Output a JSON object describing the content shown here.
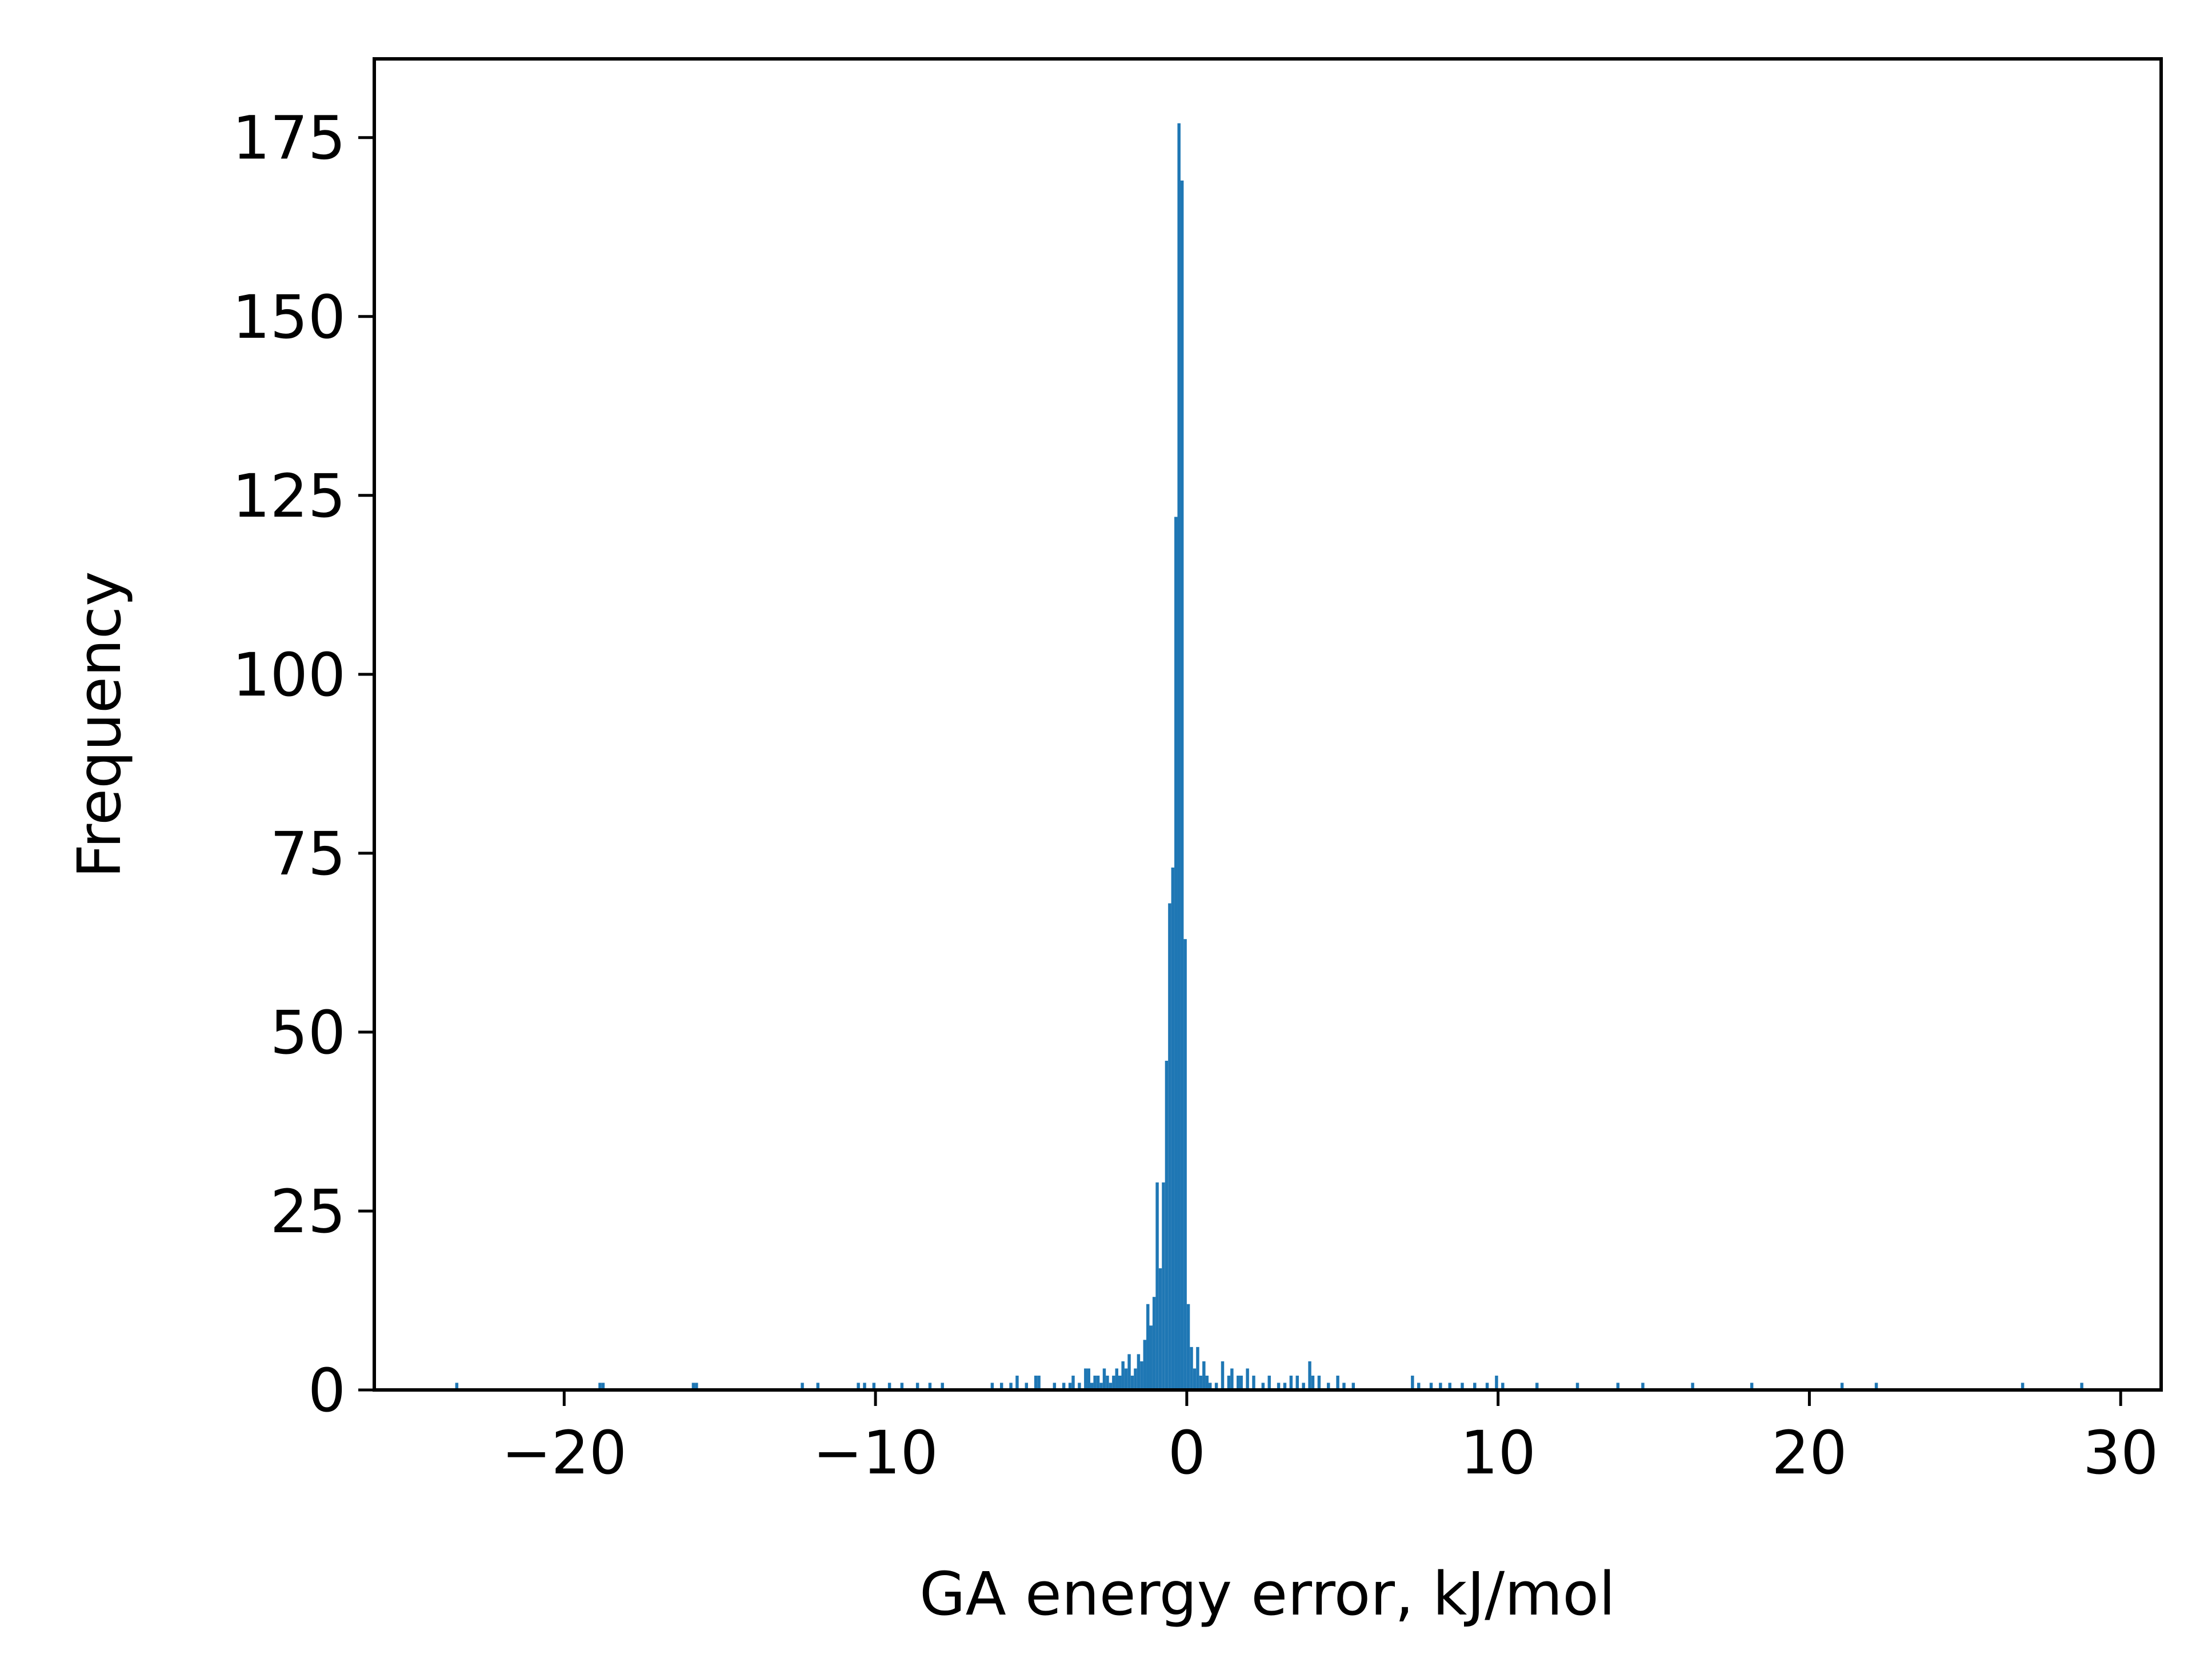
{
  "chart_data": {
    "type": "histogram",
    "title": "",
    "xlabel": "GA energy error, kJ/mol",
    "ylabel": "Frequency",
    "xlim": [
      -26.1,
      31.3
    ],
    "ylim": [
      0,
      186
    ],
    "xticks": [
      -20,
      -10,
      0,
      10,
      20,
      30
    ],
    "xtick_labels": [
      "−20",
      "−10",
      "0",
      "10",
      "20",
      "30"
    ],
    "yticks": [
      0,
      25,
      50,
      75,
      100,
      125,
      150,
      175
    ],
    "ytick_labels": [
      "0",
      "25",
      "50",
      "75",
      "100",
      "125",
      "150",
      "175"
    ],
    "grid": false,
    "legend": "none",
    "bar_color": "#1f77b4",
    "bin_width": 0.1,
    "bins": [
      {
        "x": -23.5,
        "y": 1
      },
      {
        "x": -18.9,
        "y": 1
      },
      {
        "x": -18.8,
        "y": 1
      },
      {
        "x": -15.9,
        "y": 1
      },
      {
        "x": -15.8,
        "y": 1
      },
      {
        "x": -12.4,
        "y": 1
      },
      {
        "x": -11.9,
        "y": 1
      },
      {
        "x": -10.6,
        "y": 1
      },
      {
        "x": -10.4,
        "y": 1
      },
      {
        "x": -10.1,
        "y": 1
      },
      {
        "x": -9.6,
        "y": 1
      },
      {
        "x": -9.2,
        "y": 1
      },
      {
        "x": -8.7,
        "y": 1
      },
      {
        "x": -8.3,
        "y": 1
      },
      {
        "x": -7.9,
        "y": 1
      },
      {
        "x": -6.3,
        "y": 1
      },
      {
        "x": -6.0,
        "y": 1
      },
      {
        "x": -5.7,
        "y": 1
      },
      {
        "x": -5.5,
        "y": 2
      },
      {
        "x": -5.2,
        "y": 1
      },
      {
        "x": -4.9,
        "y": 2
      },
      {
        "x": -4.8,
        "y": 2
      },
      {
        "x": -4.3,
        "y": 1
      },
      {
        "x": -4.0,
        "y": 1
      },
      {
        "x": -3.8,
        "y": 1
      },
      {
        "x": -3.7,
        "y": 2
      },
      {
        "x": -3.5,
        "y": 1
      },
      {
        "x": -3.3,
        "y": 3
      },
      {
        "x": -3.2,
        "y": 3
      },
      {
        "x": -3.1,
        "y": 1
      },
      {
        "x": -3.0,
        "y": 2
      },
      {
        "x": -2.9,
        "y": 2
      },
      {
        "x": -2.8,
        "y": 1
      },
      {
        "x": -2.7,
        "y": 3
      },
      {
        "x": -2.6,
        "y": 2
      },
      {
        "x": -2.5,
        "y": 1
      },
      {
        "x": -2.4,
        "y": 2
      },
      {
        "x": -2.3,
        "y": 3
      },
      {
        "x": -2.2,
        "y": 2
      },
      {
        "x": -2.1,
        "y": 4
      },
      {
        "x": -2.0,
        "y": 3
      },
      {
        "x": -1.9,
        "y": 5
      },
      {
        "x": -1.8,
        "y": 2
      },
      {
        "x": -1.7,
        "y": 3
      },
      {
        "x": -1.6,
        "y": 5
      },
      {
        "x": -1.5,
        "y": 4
      },
      {
        "x": -1.4,
        "y": 7
      },
      {
        "x": -1.3,
        "y": 12
      },
      {
        "x": -1.2,
        "y": 9
      },
      {
        "x": -1.1,
        "y": 13
      },
      {
        "x": -1.0,
        "y": 29
      },
      {
        "x": -0.9,
        "y": 17
      },
      {
        "x": -0.8,
        "y": 29
      },
      {
        "x": -0.7,
        "y": 46
      },
      {
        "x": -0.6,
        "y": 68
      },
      {
        "x": -0.5,
        "y": 73
      },
      {
        "x": -0.4,
        "y": 122
      },
      {
        "x": -0.3,
        "y": 177
      },
      {
        "x": -0.2,
        "y": 169
      },
      {
        "x": -0.1,
        "y": 63
      },
      {
        "x": 0.0,
        "y": 12
      },
      {
        "x": 0.1,
        "y": 6
      },
      {
        "x": 0.2,
        "y": 3
      },
      {
        "x": 0.3,
        "y": 6
      },
      {
        "x": 0.4,
        "y": 2
      },
      {
        "x": 0.5,
        "y": 4
      },
      {
        "x": 0.6,
        "y": 2
      },
      {
        "x": 0.7,
        "y": 1
      },
      {
        "x": 0.9,
        "y": 1
      },
      {
        "x": 1.1,
        "y": 4
      },
      {
        "x": 1.3,
        "y": 2
      },
      {
        "x": 1.4,
        "y": 3
      },
      {
        "x": 1.6,
        "y": 2
      },
      {
        "x": 1.7,
        "y": 2
      },
      {
        "x": 1.9,
        "y": 3
      },
      {
        "x": 2.1,
        "y": 2
      },
      {
        "x": 2.4,
        "y": 1
      },
      {
        "x": 2.6,
        "y": 2
      },
      {
        "x": 2.9,
        "y": 1
      },
      {
        "x": 3.1,
        "y": 1
      },
      {
        "x": 3.3,
        "y": 2
      },
      {
        "x": 3.5,
        "y": 2
      },
      {
        "x": 3.7,
        "y": 1
      },
      {
        "x": 3.9,
        "y": 4
      },
      {
        "x": 4.0,
        "y": 2
      },
      {
        "x": 4.2,
        "y": 2
      },
      {
        "x": 4.5,
        "y": 1
      },
      {
        "x": 4.8,
        "y": 2
      },
      {
        "x": 5.0,
        "y": 1
      },
      {
        "x": 5.3,
        "y": 1
      },
      {
        "x": 7.2,
        "y": 2
      },
      {
        "x": 7.4,
        "y": 1
      },
      {
        "x": 7.8,
        "y": 1
      },
      {
        "x": 8.1,
        "y": 1
      },
      {
        "x": 8.4,
        "y": 1
      },
      {
        "x": 8.8,
        "y": 1
      },
      {
        "x": 9.2,
        "y": 1
      },
      {
        "x": 9.6,
        "y": 1
      },
      {
        "x": 9.9,
        "y": 2
      },
      {
        "x": 10.1,
        "y": 1
      },
      {
        "x": 11.2,
        "y": 1
      },
      {
        "x": 12.5,
        "y": 1
      },
      {
        "x": 13.8,
        "y": 1
      },
      {
        "x": 14.6,
        "y": 1
      },
      {
        "x": 16.2,
        "y": 1
      },
      {
        "x": 18.1,
        "y": 1
      },
      {
        "x": 21.0,
        "y": 1
      },
      {
        "x": 22.1,
        "y": 1
      },
      {
        "x": 26.8,
        "y": 1
      },
      {
        "x": 28.7,
        "y": 1
      }
    ]
  }
}
